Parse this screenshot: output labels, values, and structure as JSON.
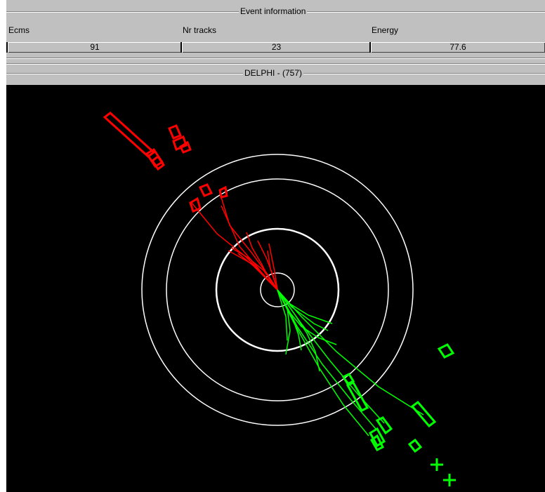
{
  "event_info": {
    "title": "Event information",
    "fields": [
      {
        "label": "Ecms",
        "value": "91"
      },
      {
        "label": "Nr tracks",
        "value": "23"
      },
      {
        "label": "Energy",
        "value": "77.6"
      }
    ]
  },
  "display": {
    "title": "DELPHI - (757)"
  },
  "colors": {
    "panel_bg": "#c0c0c0",
    "display_bg": "#000000",
    "detector_rings": "#ffffff",
    "hemisphere_1": "#ff0000",
    "hemisphere_2": "#00ff00"
  }
}
